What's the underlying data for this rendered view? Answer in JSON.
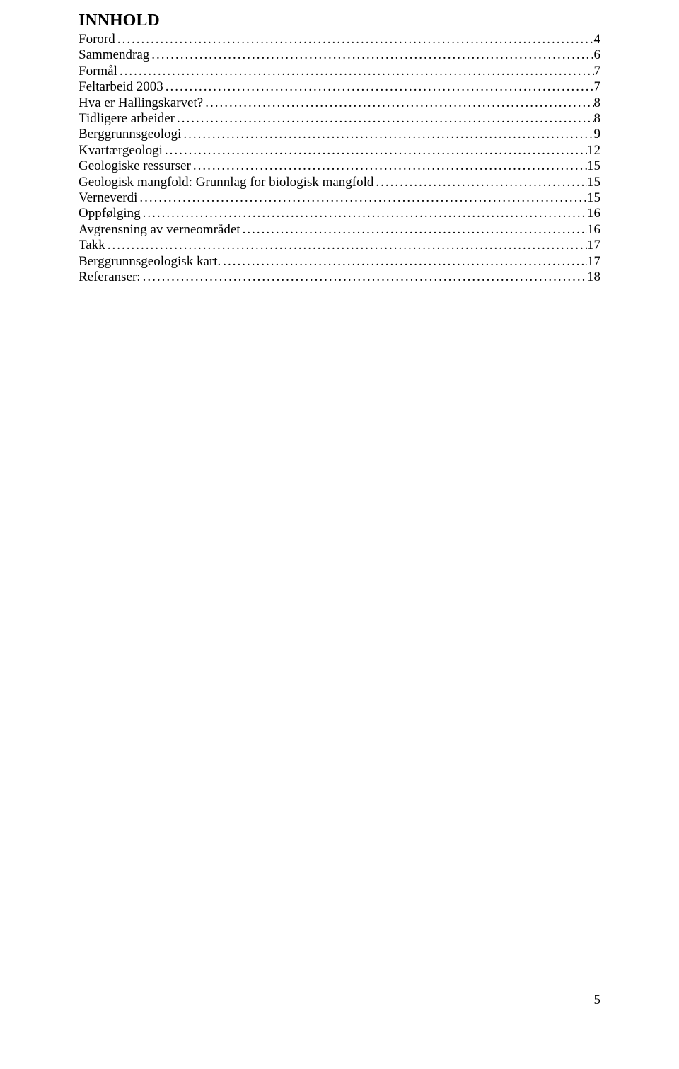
{
  "title": "INNHOLD",
  "toc": [
    {
      "label": "Forord",
      "page": "4"
    },
    {
      "label": "Sammendrag",
      "page": "6"
    },
    {
      "label": "Formål",
      "page": "7"
    },
    {
      "label": "Feltarbeid 2003",
      "page": "7"
    },
    {
      "label": "Hva er Hallingskarvet?",
      "page": "8"
    },
    {
      "label": "Tidligere arbeider",
      "page": "8"
    },
    {
      "label": "Berggrunnsgeologi",
      "page": "9"
    },
    {
      "label": "Kvartærgeologi",
      "page": "12"
    },
    {
      "label": "Geologiske ressurser",
      "page": "15"
    },
    {
      "label": "Geologisk mangfold: Grunnlag for biologisk mangfold",
      "page": "15"
    },
    {
      "label": "Verneverdi",
      "page": "15"
    },
    {
      "label": "Oppfølging",
      "page": "16"
    },
    {
      "label": "Avgrensning av verneområdet",
      "page": "16"
    },
    {
      "label": "Takk",
      "page": "17"
    },
    {
      "label": "Berggrunnsgeologisk kart.",
      "page": "17"
    },
    {
      "label": "Referanser:",
      "page": "18"
    }
  ],
  "pageNumber": "5",
  "style": {
    "title_fontsize": 24,
    "entry_fontsize": 19,
    "font_family": "Times New Roman",
    "text_color": "#000000",
    "background_color": "#ffffff",
    "dot_char": "."
  }
}
